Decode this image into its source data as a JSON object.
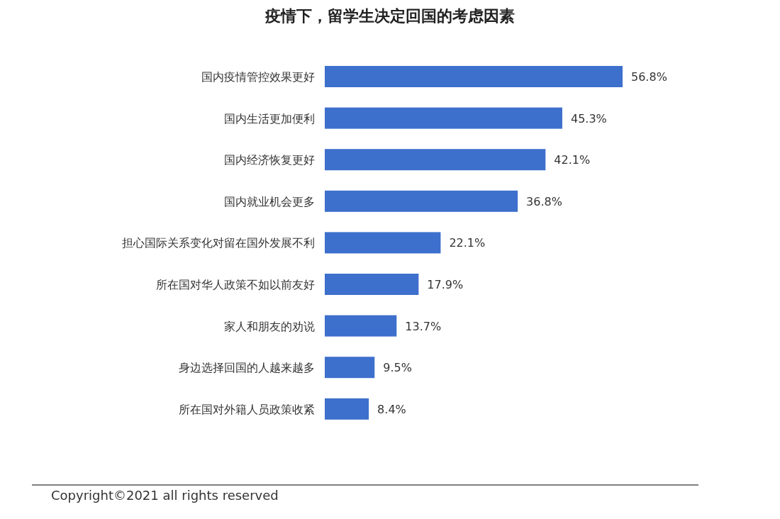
{
  "chart_data": {
    "type": "bar",
    "orientation": "horizontal",
    "title": "疫情下，留学生决定回国的考虑因素",
    "categories": [
      "国内疫情管控效果更好",
      "国内生活更加便利",
      "国内经济恢复更好",
      "国内就业机会更多",
      "担心国际关系变化对留在国外发展不利",
      "所在国对华人政策不如以前友好",
      "家人和朋友的劝说",
      "身边选择回国的人越来越多",
      "所在国对外籍人员政策收紧"
    ],
    "values": [
      56.8,
      45.3,
      42.1,
      36.8,
      22.1,
      17.9,
      13.7,
      9.5,
      8.4
    ],
    "value_labels": [
      "56.8%",
      "45.3%",
      "42.1%",
      "36.8%",
      "22.1%",
      "17.9%",
      "13.7%",
      "9.5%",
      "8.4%"
    ],
    "color": "#3d6fcc",
    "annotations": [
      "Copyright©2021 all rights reserved"
    ]
  }
}
